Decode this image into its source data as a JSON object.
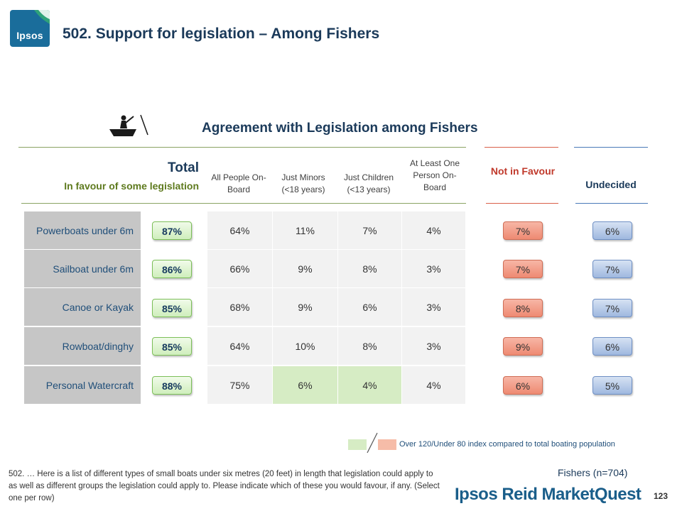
{
  "logo": {
    "text": "Ipsos"
  },
  "title": "502. Support for legislation – Among Fishers",
  "subtitle": "Agreement with Legislation among Fishers",
  "header": {
    "total": "Total",
    "in_favour": "In favour of some legislation",
    "columns": [
      "All People On-Board",
      "Just Minors (<18 years)",
      "Just Children (<13 years)",
      "At Least One Person On-Board"
    ],
    "not_in_favour": "Not in Favour",
    "undecided": "Undecided"
  },
  "rows": [
    {
      "label": "Powerboats under 6m",
      "total": "87%",
      "values": [
        "64%",
        "11%",
        "7%",
        "4%"
      ],
      "not_in_favour": "7%",
      "undecided": "6%"
    },
    {
      "label": "Sailboat under 6m",
      "total": "86%",
      "values": [
        "66%",
        "9%",
        "8%",
        "3%"
      ],
      "not_in_favour": "7%",
      "undecided": "7%"
    },
    {
      "label": "Canoe or Kayak",
      "total": "85%",
      "values": [
        "68%",
        "9%",
        "6%",
        "3%"
      ],
      "not_in_favour": "8%",
      "undecided": "7%"
    },
    {
      "label": "Rowboat/dinghy",
      "total": "85%",
      "values": [
        "64%",
        "10%",
        "8%",
        "3%"
      ],
      "not_in_favour": "9%",
      "undecided": "6%"
    },
    {
      "label": "Personal Watercraft",
      "total": "88%",
      "values": [
        "75%",
        "6%",
        "4%",
        "4%"
      ],
      "not_in_favour": "6%",
      "undecided": "5%"
    }
  ],
  "highlighted_cells": [
    [
      4,
      1
    ],
    [
      4,
      2
    ]
  ],
  "legend": "Over 120/Under 80 index compared to total boating population",
  "footnote": "502. … Here is a list of different types of small boats under six metres (20 feet) in length that legislation could apply to as well as different groups the legislation could apply to. Please indicate which of these you would favour, if any. (Select one per row)",
  "sample": "Fishers (n=704)",
  "brand": "Ipsos Reid MarketQuest",
  "page_number": "123",
  "colors": {
    "title": "#1b3a5a",
    "green_badge": "#cfeebc",
    "red_badge": "#ee8a72",
    "blue_badge": "#9fb8df",
    "highlight_green": "#d6ecc4",
    "highlight_red": "#f6bca8"
  }
}
